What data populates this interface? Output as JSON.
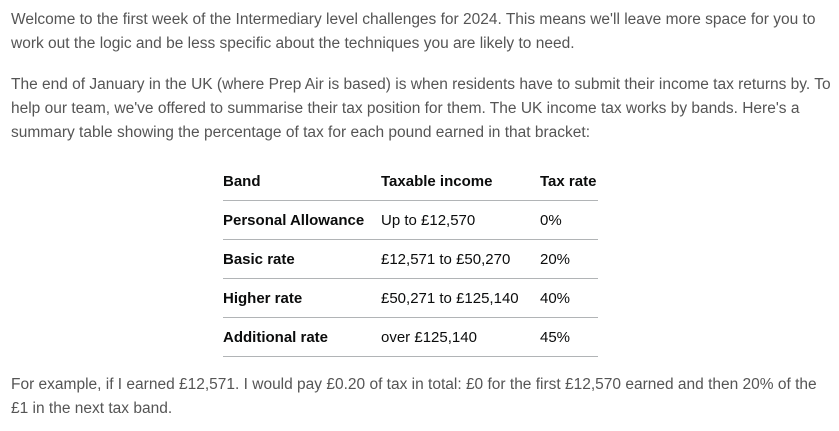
{
  "intro": "Welcome to the first week of the Intermediary level challenges for 2024. This means we'll leave more space for you to work out the logic and be less specific about the techniques you are likely to need.",
  "context": "The end of January in the UK (where Prep Air is based) is when residents have to submit their income tax returns by. To help our team, we've offered to summarise their tax position for them. The UK income tax works by bands. Here's a summary table showing the percentage of tax for each pound earned in that bracket:",
  "table": {
    "headers": [
      "Band",
      "Taxable income",
      "Tax rate"
    ],
    "rows": [
      {
        "band": "Personal Allowance",
        "income": "Up to £12,570",
        "rate": "0%"
      },
      {
        "band": "Basic rate",
        "income": "£12,571 to £50,270",
        "rate": "20%"
      },
      {
        "band": "Higher rate",
        "income": "£50,271 to £125,140",
        "rate": "40%"
      },
      {
        "band": "Additional rate",
        "income": "over £125,140",
        "rate": "45%"
      }
    ]
  },
  "example": "For example, if I earned £12,571. I would pay £0.20 of tax in total: £0 for the first £12,570 earned and then 20% of the £1 in the next tax band."
}
